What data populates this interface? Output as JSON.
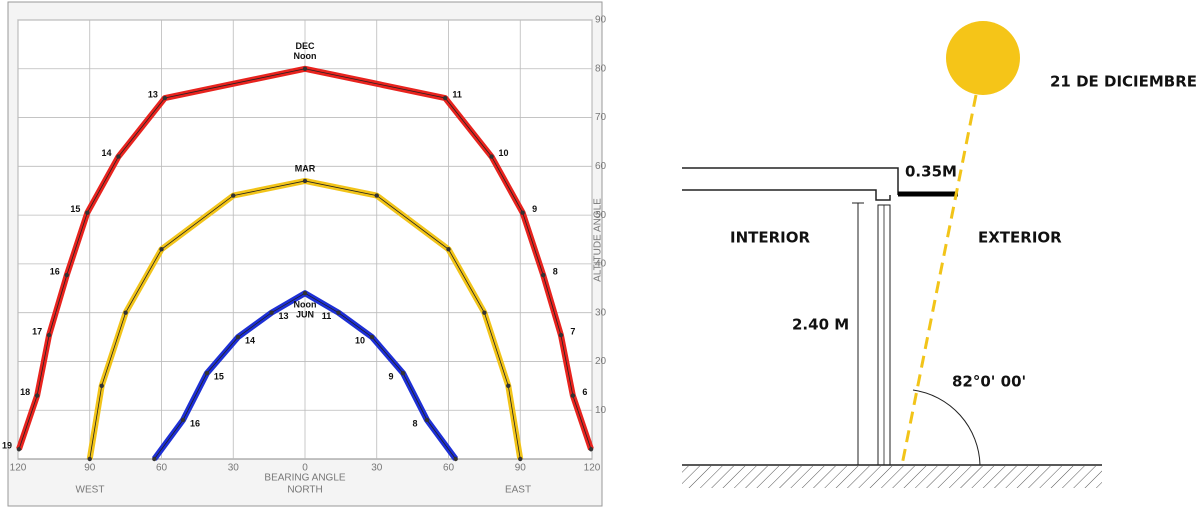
{
  "chart_data": {
    "type": "sunpath",
    "xlabel": "BEARING ANGLE",
    "xlabel_sub": "NORTH",
    "ylabel": "ALTITUDE ANGLE",
    "west_label": "WEST",
    "east_label": "EAST",
    "xlim": [
      -120,
      120
    ],
    "xticks": [
      {
        "value": -120,
        "label": "120"
      },
      {
        "value": -90,
        "label": "90"
      },
      {
        "value": -60,
        "label": "60"
      },
      {
        "value": -30,
        "label": "30"
      },
      0,
      30,
      60,
      90,
      120
    ],
    "ylim": [
      0,
      90
    ],
    "yticks": [
      10,
      20,
      30,
      40,
      50,
      60,
      70,
      80,
      90
    ],
    "grid": true,
    "series": [
      {
        "name": "DEC",
        "label_lines": [
          "DEC",
          "Noon"
        ],
        "color": "#e8231e",
        "x": [
          -119.6,
          -112,
          -107,
          -99.6,
          -91,
          -78,
          -58.6,
          0,
          58.6,
          78,
          91,
          99.6,
          107,
          112,
          119.6
        ],
        "y": [
          2,
          13,
          25.4,
          37.7,
          50.5,
          62,
          74,
          80,
          74,
          62,
          50.5,
          37.7,
          25.4,
          13,
          2
        ],
        "hours": [
          19,
          18,
          17,
          16,
          15,
          14,
          13,
          null,
          11,
          10,
          9,
          8,
          7,
          6,
          null
        ]
      },
      {
        "name": "MAR",
        "label_lines": [
          "MAR"
        ],
        "color": "#f2c419",
        "x": [
          -90,
          -85,
          -75,
          -60,
          -30,
          0,
          30,
          60,
          75,
          85,
          90
        ],
        "y": [
          0,
          15,
          30,
          43,
          54,
          57,
          54,
          43,
          30,
          15,
          0
        ],
        "hours": [
          null,
          null,
          null,
          null,
          null,
          null,
          null,
          null,
          null,
          null,
          null
        ]
      },
      {
        "name": "JUN",
        "label_lines": [
          "Noon",
          "JUN"
        ],
        "color": "#1d2fd6",
        "x": [
          -63,
          -51,
          -41,
          -28,
          -14,
          0,
          14,
          28,
          41,
          51,
          63
        ],
        "y": [
          0,
          8,
          17.6,
          25,
          30,
          34,
          30,
          25,
          17.6,
          8,
          0
        ],
        "hours": [
          null,
          16,
          15,
          14,
          13,
          null,
          11,
          10,
          9,
          8,
          null
        ]
      }
    ]
  },
  "section": {
    "date": "21 DE DICIEMBRE",
    "overhang": "0.35M",
    "interior": "INTERIOR",
    "exterior": "EXTERIOR",
    "height": "2.40 M",
    "angle": "82°0' 00'"
  }
}
